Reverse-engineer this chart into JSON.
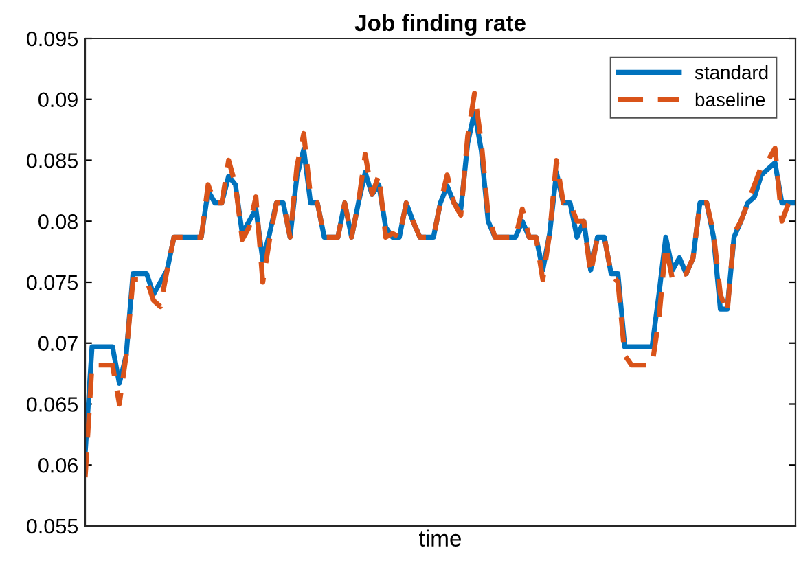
{
  "chart_data": {
    "type": "line",
    "title": "Job finding rate",
    "xlabel": "time",
    "categories": [
      null,
      null,
      null,
      null,
      null,
      null,
      null,
      null,
      null,
      null,
      null,
      null,
      null,
      null,
      null,
      null,
      null,
      null,
      null,
      null,
      null,
      null,
      null,
      null,
      null,
      null,
      null,
      null,
      null,
      null,
      null,
      null,
      null,
      null,
      null,
      null,
      null,
      null,
      null,
      null,
      null,
      null,
      null,
      null,
      null,
      null,
      null,
      null,
      null,
      null,
      null,
      null,
      null,
      null,
      null,
      null,
      null,
      null,
      null,
      null,
      null,
      null,
      null,
      null,
      null,
      null,
      null,
      null,
      null,
      null,
      null,
      null,
      null,
      null,
      null,
      null,
      null,
      null,
      null,
      null,
      null,
      null,
      null,
      null,
      null,
      null,
      null,
      null,
      null,
      null,
      null,
      null,
      null,
      null,
      null,
      null,
      null,
      null,
      null,
      null,
      null,
      null,
      null,
      null,
      null
    ],
    "series": [
      {
        "name": "standard",
        "color": "#0072bd",
        "line_style": "solid",
        "values": [
          0.061,
          0.0697,
          0.0697,
          0.0697,
          0.0697,
          0.0667,
          0.069,
          0.0757,
          0.0757,
          0.0757,
          0.074,
          0.075,
          0.076,
          0.0787,
          0.0787,
          0.0787,
          0.0787,
          0.0787,
          0.0825,
          0.0815,
          0.0815,
          0.0837,
          0.083,
          0.079,
          0.08,
          0.081,
          0.0768,
          0.079,
          0.0815,
          0.0815,
          0.0787,
          0.0837,
          0.0859,
          0.0815,
          0.0815,
          0.0787,
          0.0787,
          0.0787,
          0.0815,
          0.0787,
          0.0815,
          0.084,
          0.0822,
          0.083,
          0.0795,
          0.0787,
          0.0787,
          0.0815,
          0.08,
          0.0787,
          0.0787,
          0.0787,
          0.0815,
          0.0829,
          0.0815,
          0.081,
          0.0864,
          0.089,
          0.0858,
          0.08,
          0.0787,
          0.0787,
          0.0787,
          0.0787,
          0.08,
          0.0787,
          0.0787,
          0.076,
          0.079,
          0.084,
          0.0815,
          0.0815,
          0.0787,
          0.08,
          0.076,
          0.0787,
          0.0787,
          0.0757,
          0.0757,
          0.0697,
          0.0697,
          0.0697,
          0.0697,
          0.0697,
          0.074,
          0.0787,
          0.076,
          0.077,
          0.0757,
          0.077,
          0.0815,
          0.0815,
          0.0787,
          0.0728,
          0.0728,
          0.0787,
          0.08,
          0.0815,
          0.082,
          0.0838,
          0.0843,
          0.0848,
          0.0815,
          0.0815,
          0.0815
        ]
      },
      {
        "name": "baseline",
        "color": "#d95319",
        "line_style": "dashed",
        "values": [
          0.059,
          0.0682,
          0.0682,
          0.0682,
          0.0682,
          0.065,
          0.069,
          0.0752,
          0.0752,
          0.0752,
          0.0735,
          0.073,
          0.076,
          0.0787,
          0.0787,
          0.0787,
          0.0787,
          0.0787,
          0.083,
          0.0815,
          0.0815,
          0.085,
          0.083,
          0.0785,
          0.0795,
          0.082,
          0.075,
          0.0785,
          0.0815,
          0.0815,
          0.0787,
          0.0845,
          0.0872,
          0.082,
          0.0815,
          0.0787,
          0.0787,
          0.0787,
          0.0815,
          0.0787,
          0.0815,
          0.0855,
          0.0822,
          0.0838,
          0.0787,
          0.079,
          0.0787,
          0.0815,
          0.08,
          0.0787,
          0.0787,
          0.0787,
          0.0815,
          0.0838,
          0.0815,
          0.0805,
          0.087,
          0.0905,
          0.0865,
          0.0805,
          0.0787,
          0.0787,
          0.0787,
          0.0787,
          0.081,
          0.0787,
          0.0787,
          0.0752,
          0.079,
          0.085,
          0.0815,
          0.0815,
          0.08,
          0.08,
          0.0757,
          0.0787,
          0.0787,
          0.0757,
          0.075,
          0.069,
          0.0682,
          0.0682,
          0.0682,
          0.0682,
          0.072,
          0.078,
          0.0752,
          0.0755,
          0.0757,
          0.077,
          0.0815,
          0.0815,
          0.079,
          0.074,
          0.0725,
          0.079,
          0.08,
          0.0815,
          0.083,
          0.0845,
          0.085,
          0.086,
          0.08,
          0.0815,
          0.0815
        ]
      }
    ],
    "ylim": [
      0.055,
      0.095
    ],
    "yticks": [
      0.055,
      0.06,
      0.065,
      0.07,
      0.075,
      0.08,
      0.085,
      0.09,
      0.095
    ],
    "tick_labels": "y",
    "legend": "top right",
    "grid": false
  }
}
